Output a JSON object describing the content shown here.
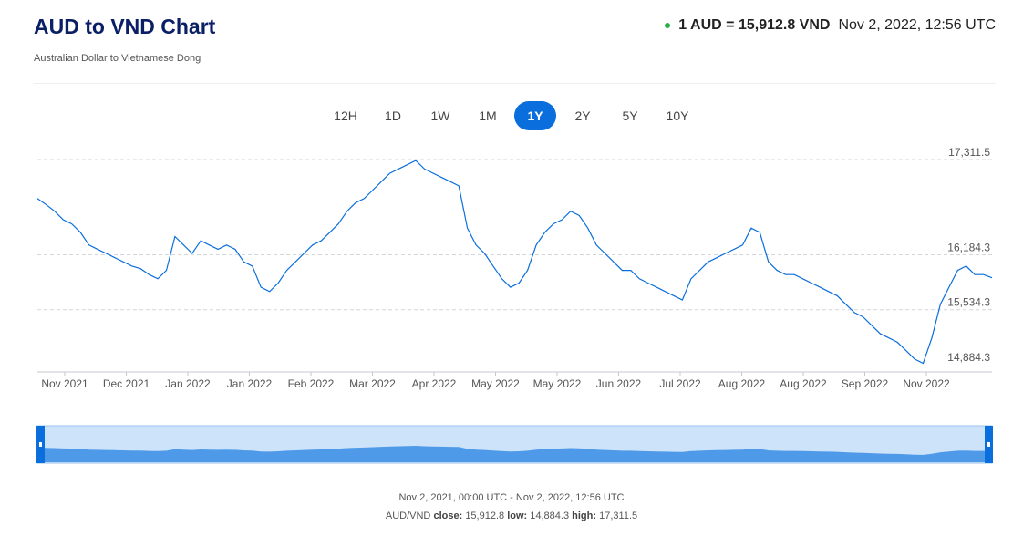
{
  "header": {
    "title": "AUD to VND Chart",
    "subtitle": "Australian Dollar to Vietnamese Dong",
    "rate_value": "1 AUD = 15,912.8 VND",
    "rate_time": "Nov 2, 2022, 12:56 UTC",
    "status_color": "#2eae49"
  },
  "ranges": {
    "active": "1Y",
    "items": [
      "12H",
      "1D",
      "1W",
      "1M",
      "1Y",
      "2Y",
      "5Y",
      "10Y"
    ]
  },
  "chart_data": {
    "type": "line",
    "series": [
      {
        "values": [
          16850,
          16780,
          16700,
          16600,
          16550,
          16450,
          16300,
          16250,
          16200,
          16150,
          16100,
          16050,
          16020,
          15950,
          15900,
          16000,
          16400,
          16300,
          16200,
          16350,
          16300,
          16250,
          16300,
          16250,
          16100,
          16050,
          15800,
          15750,
          15850,
          16000,
          16100,
          16200,
          16300,
          16350,
          16450,
          16550,
          16700,
          16800,
          16850,
          16950,
          17050,
          17150,
          17200,
          17250,
          17300,
          17200,
          17150,
          17100,
          17050,
          17000,
          16500,
          16300,
          16200,
          16050,
          15900,
          15800,
          15850,
          16000,
          16300,
          16450,
          16550,
          16600,
          16700,
          16650,
          16500,
          16300,
          16200,
          16100,
          16000,
          16000,
          15900,
          15850,
          15800,
          15750,
          15700,
          15650,
          15900,
          16000,
          16100,
          16150,
          16200,
          16250,
          16300,
          16500,
          16450,
          16100,
          16000,
          15950,
          15950,
          15900,
          15850,
          15800,
          15750,
          15700,
          15600,
          15500,
          15450,
          15350,
          15250,
          15200,
          15150,
          15050,
          14950,
          14900,
          15200,
          15600,
          15800,
          16000,
          16050,
          15950,
          15950,
          15912.8
        ]
      }
    ],
    "x_ticks": [
      "Nov 2021",
      "Dec 2021",
      "Jan 2022",
      "Jan 2022",
      "Feb 2022",
      "Mar 2022",
      "Apr 2022",
      "May 2022",
      "May 2022",
      "Jun 2022",
      "Jul 2022",
      "Aug 2022",
      "Aug 2022",
      "Sep 2022",
      "Nov 2022"
    ],
    "y_ticks": [
      "17,311.5",
      "16,184.3",
      "15,534.3",
      "14,884.3"
    ],
    "y_tick_values": [
      17311.5,
      16184.3,
      15534.3,
      14884.3
    ],
    "ylim": [
      14884.3,
      17311.5
    ],
    "grid": true,
    "line_color": "#0a6edd",
    "navigator_color": "#4f9ae8"
  },
  "footer": {
    "period": "Nov 2, 2021, 00:00 UTC - Nov 2, 2022, 12:56 UTC",
    "pair": "AUD/VND",
    "close_label": "close:",
    "close_value": "15,912.8",
    "low_label": "low:",
    "low_value": "14,884.3",
    "high_label": "high:",
    "high_value": "17,311.5"
  }
}
